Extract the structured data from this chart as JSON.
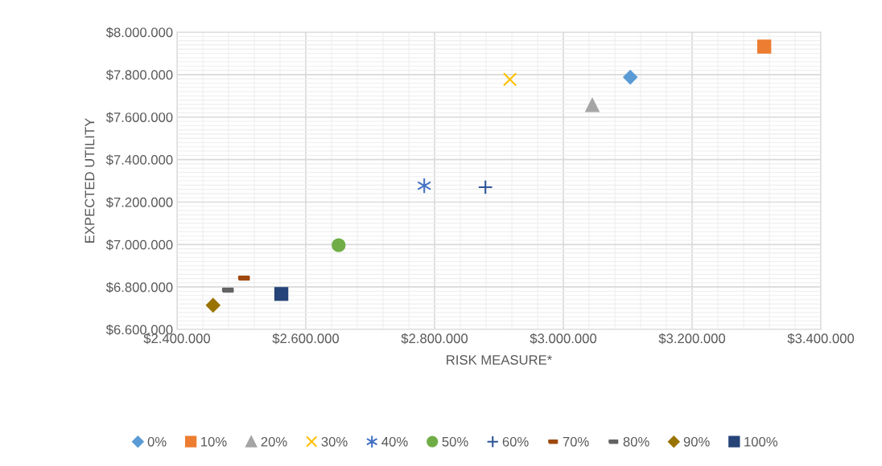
{
  "chart_data": {
    "type": "scatter",
    "xlabel": "RISK MEASURE*",
    "ylabel": "EXPECTED UTILITY",
    "xlim": [
      2400000,
      3400000
    ],
    "xticks": [
      {
        "value": 2400000,
        "label": "$2.400.000"
      },
      {
        "value": 2600000,
        "label": "$2.600.000"
      },
      {
        "value": 2800000,
        "label": "$2.800.000"
      },
      {
        "value": 3000000,
        "label": "$3.000.000"
      },
      {
        "value": 3200000,
        "label": "$3.200.000"
      },
      {
        "value": 3400000,
        "label": "$3.400.000"
      }
    ],
    "ylim": [
      6600000,
      8000000
    ],
    "yticks": [
      {
        "value": 6600000,
        "label": "$6.600.000"
      },
      {
        "value": 6800000,
        "label": "$6.800.000"
      },
      {
        "value": 7000000,
        "label": "$7.000.000"
      },
      {
        "value": 7200000,
        "label": "$7.200.000"
      },
      {
        "value": 7400000,
        "label": "$7.400.000"
      },
      {
        "value": 7600000,
        "label": "$7.600.000"
      },
      {
        "value": 7800000,
        "label": "$7.800.000"
      },
      {
        "value": 8000000,
        "label": "$8.000.000"
      }
    ],
    "grid": true,
    "legend": "bottom",
    "series": [
      {
        "name": "0%",
        "color": "#5b9bd5",
        "marker": "diamond",
        "x": [
          3104000
        ],
        "values": [
          7788000
        ]
      },
      {
        "name": "10%",
        "color": "#ed7d31",
        "marker": "square",
        "x": [
          3312000
        ],
        "values": [
          7932000
        ]
      },
      {
        "name": "20%",
        "color": "#a5a5a5",
        "marker": "triangle",
        "x": [
          3045000
        ],
        "values": [
          7656000
        ]
      },
      {
        "name": "30%",
        "color": "#ffc000",
        "marker": "cross",
        "x": [
          2917000
        ],
        "values": [
          7777000
        ]
      },
      {
        "name": "40%",
        "color": "#4472c4",
        "marker": "cross",
        "x": [
          2784000
        ],
        "values": [
          7277000
        ]
      },
      {
        "name": "50%",
        "color": "#70ad47",
        "marker": "circle",
        "x": [
          2651000
        ],
        "values": [
          6997000
        ]
      },
      {
        "name": "60%",
        "color": "#2e5597",
        "marker": "plus",
        "x": [
          2879000
        ],
        "values": [
          7270000
        ]
      },
      {
        "name": "70%",
        "color": "#9e480e",
        "x": [
          2504000
        ],
        "values": [
          6842000
        ]
      },
      {
        "name": "80%",
        "color": "#636363",
        "x": [
          2479000
        ],
        "values": [
          6785000
        ]
      },
      {
        "name": "90%",
        "color": "#997300",
        "marker": "diamond",
        "x": [
          2456000
        ],
        "values": [
          6714000
        ]
      },
      {
        "name": "100%",
        "color": "#264478",
        "marker": "square",
        "x": [
          2562000
        ],
        "values": [
          6767000
        ]
      }
    ]
  }
}
